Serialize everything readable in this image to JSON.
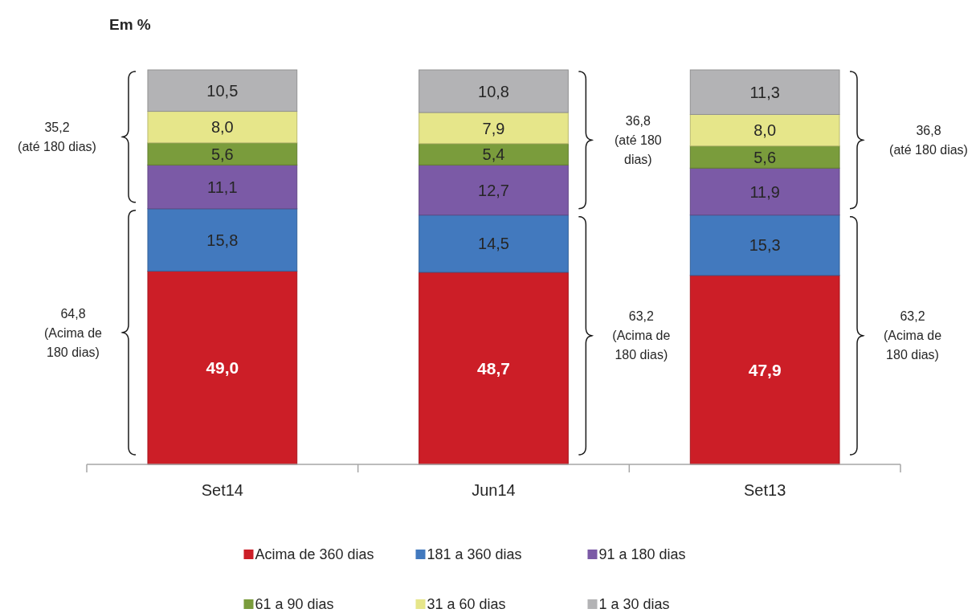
{
  "chart_data": {
    "type": "bar",
    "title": "Em %",
    "stacked": true,
    "categories": [
      "Set14",
      "Jun14",
      "Set13"
    ],
    "ylim": [
      0,
      100
    ],
    "tick_labels": "x",
    "legend": "bottom",
    "series": [
      {
        "name": "Acima de 360 dias",
        "color": "#cc1e27",
        "values": [
          49.0,
          48.7,
          47.9
        ],
        "value_labels": [
          "49,0",
          "48,7",
          "47,9"
        ]
      },
      {
        "name": "181 a 360 dias",
        "color": "#4279be",
        "values": [
          15.8,
          14.5,
          15.3
        ],
        "value_labels": [
          "15,8",
          "14,5",
          "15,3"
        ]
      },
      {
        "name": "91 a 180 dias",
        "color": "#7b5aa6",
        "values": [
          11.1,
          12.7,
          11.9
        ],
        "value_labels": [
          "11,1",
          "12,7",
          "11,9"
        ]
      },
      {
        "name": "61 a 90 dias",
        "color": "#7a9c3c",
        "values": [
          5.6,
          5.4,
          5.6
        ],
        "value_labels": [
          "5,6",
          "5,4",
          "5,6"
        ]
      },
      {
        "name": "31 a 60 dias",
        "color": "#e6e68a",
        "values": [
          8.0,
          7.9,
          8.0
        ],
        "value_labels": [
          "8,0",
          "7,9",
          "8,0"
        ]
      },
      {
        "name": "1 a 30 dias",
        "color": "#b3b3b5",
        "values": [
          10.5,
          10.8,
          11.3
        ],
        "value_labels": [
          "10,5",
          "10,8",
          "11,3"
        ]
      }
    ],
    "annotations": [
      "35,2\n(até 180 dias)",
      "64,8\n(Acima de\n180 dias)",
      "36,8\n(até 180\ndias)",
      "63,2\n(Acima de\n180 dias)",
      "36,8\n(até 180 dias)",
      "63,2\n(Acima de\n180 dias)"
    ]
  }
}
